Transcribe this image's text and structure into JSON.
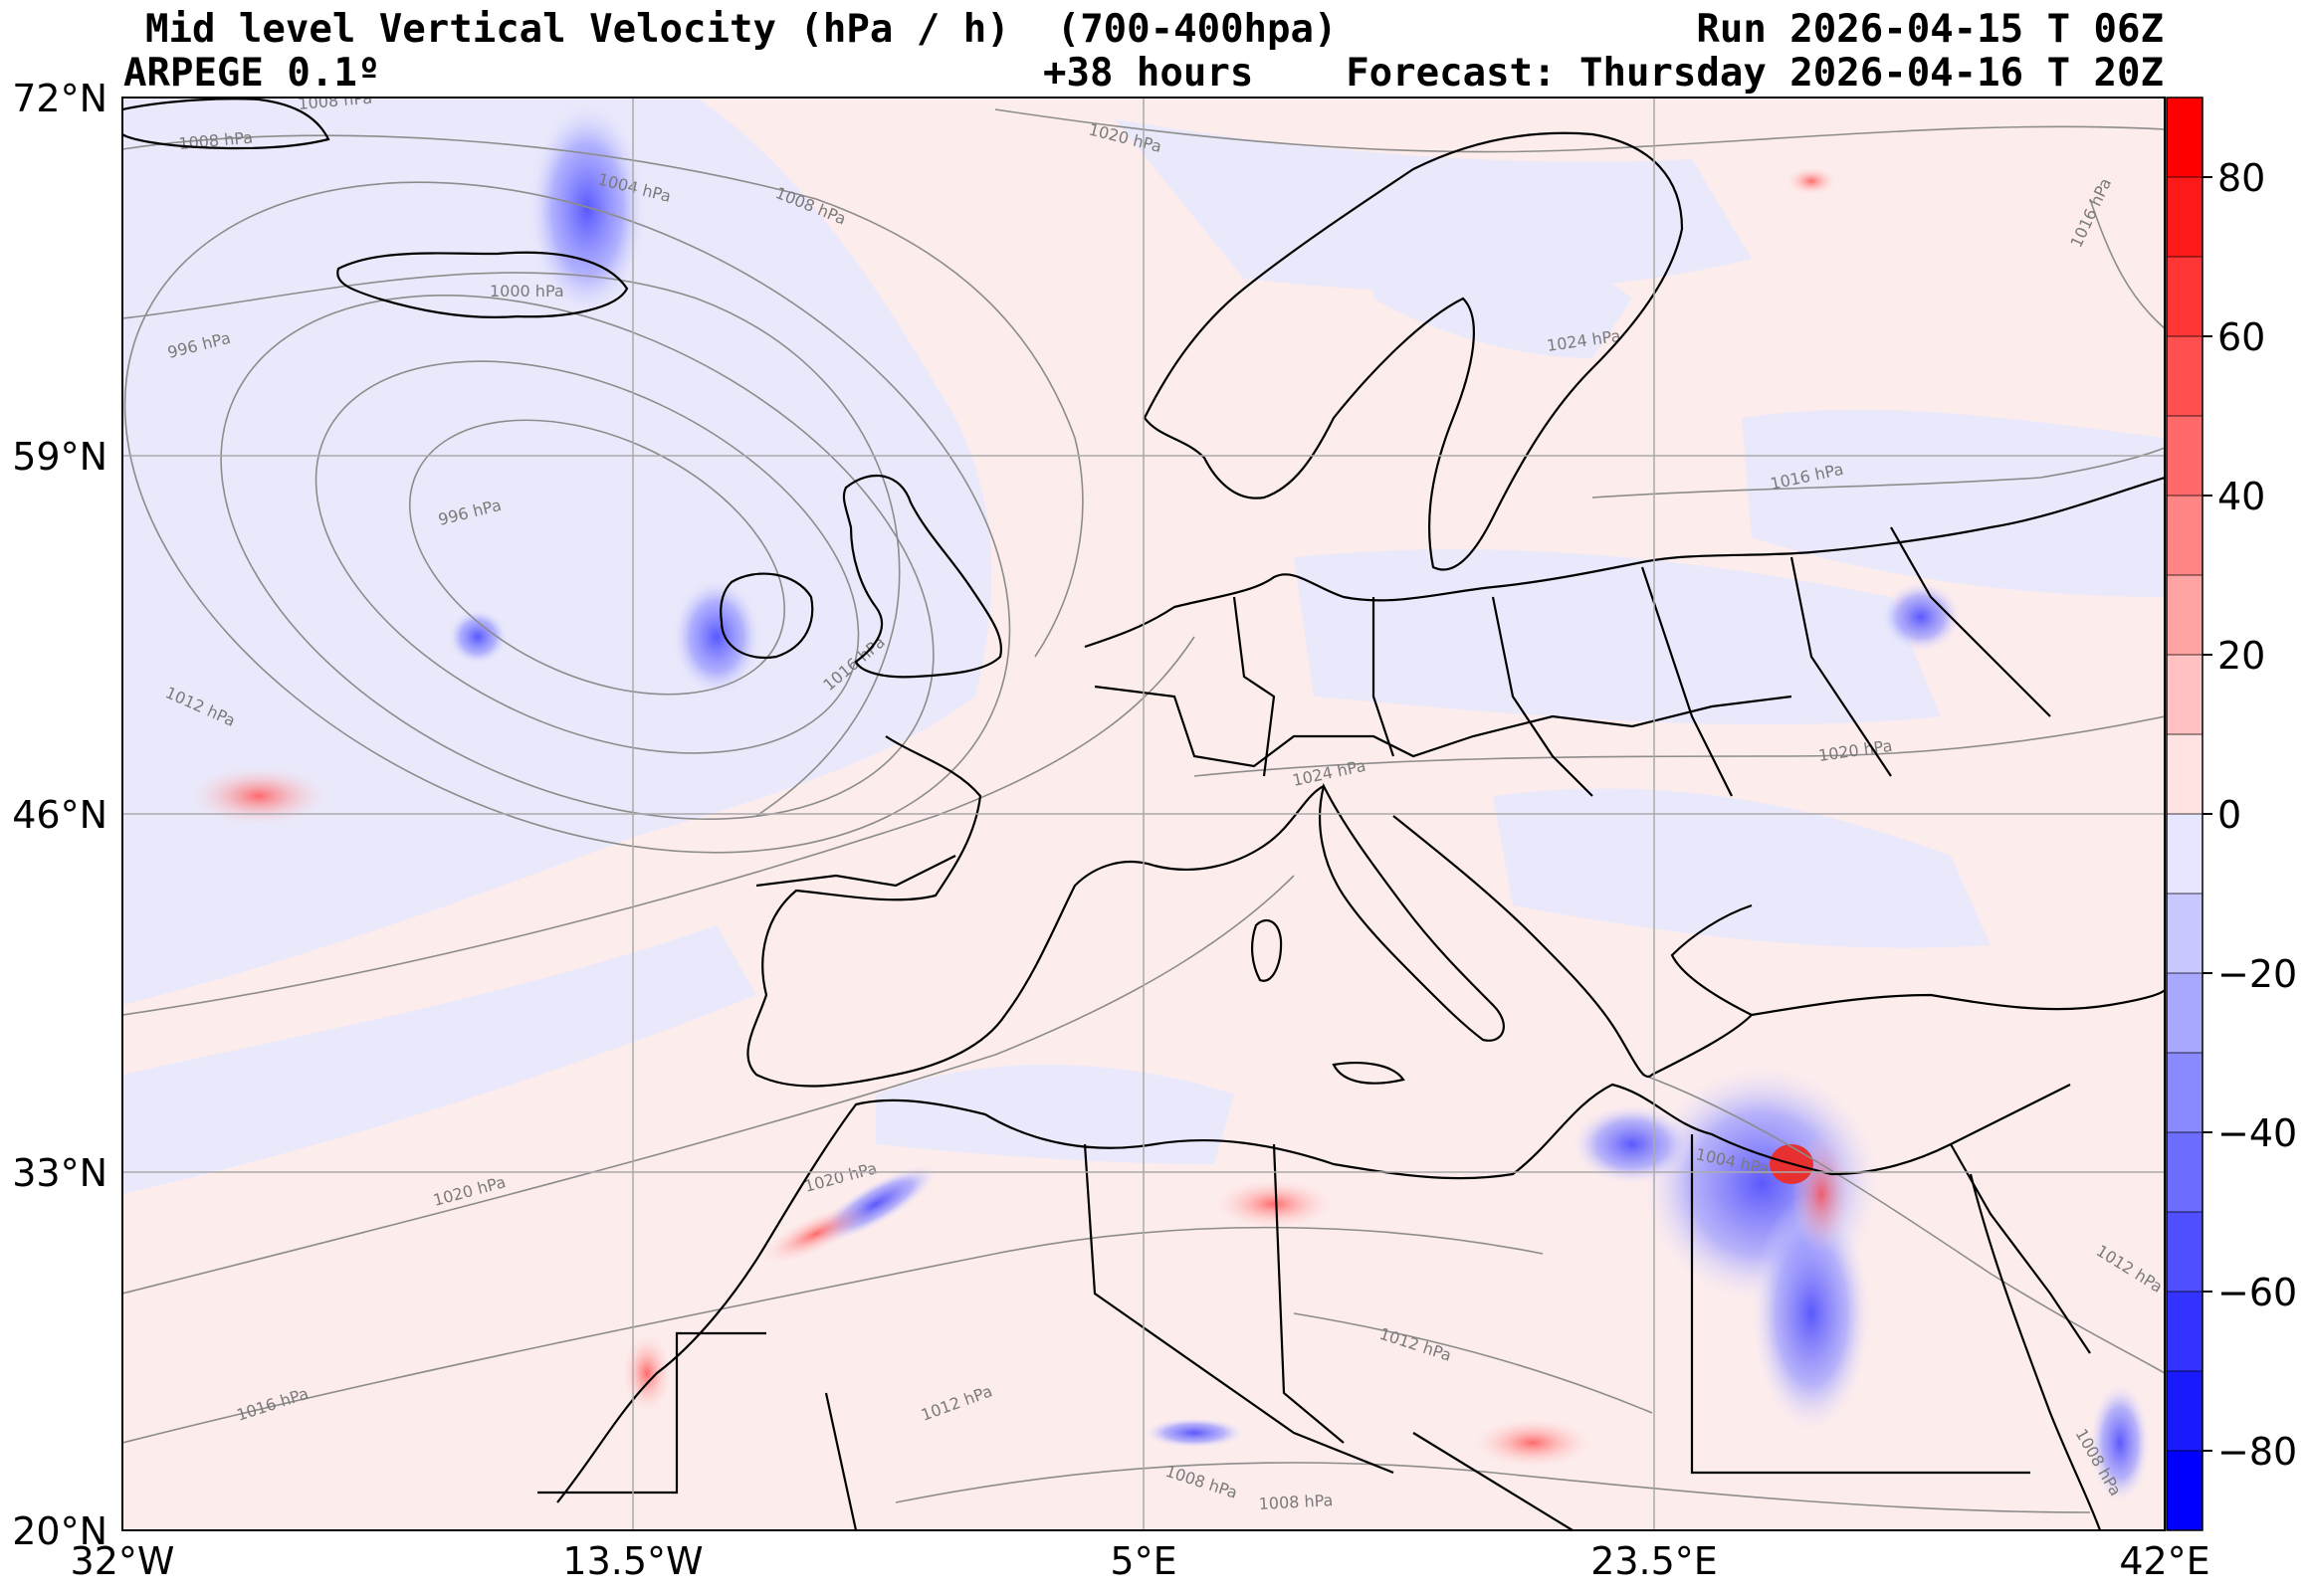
{
  "header": {
    "title": "Mid level Vertical Velocity (hPa / h)  (700-400hpa)",
    "model": "ARPEGE 0.1º",
    "run": "Run 2026-04-15 T 06Z",
    "lead": "+38 hours",
    "forecast": "Forecast: Thursday 2026-04-16 T 20Z"
  },
  "axes": {
    "lat_labels": [
      "72°N",
      "59°N",
      "46°N",
      "33°N",
      "20°N"
    ],
    "lon_labels": [
      "32°W",
      "13.5°W",
      "5°E",
      "23.5°E",
      "42°E"
    ]
  },
  "colorbar": {
    "labels": [
      "80",
      "60",
      "40",
      "20",
      "0",
      "−20",
      "−40",
      "−60",
      "−80"
    ],
    "range": [
      -90,
      90
    ],
    "positive_color": "#ff0000",
    "negative_color": "#0000ff"
  },
  "isobars": {
    "labels": [
      "1008 hPa",
      "1008 hPa",
      "1004 hPa",
      "1008 hPa",
      "1020 hPa",
      "1000 hPa",
      "996 hPa",
      "996 hPa",
      "1012 hPa",
      "1016 hPa",
      "1024 hPa",
      "1016 hPa",
      "1024 hPa",
      "1016 hPa",
      "1020 hPa",
      "1020 hPa",
      "1020 hPa",
      "1016 hPa",
      "1012 hPa",
      "1008 hPa",
      "1008 hPa",
      "1012 hPa",
      "1004 hPa",
      "1012 hPa",
      "1008 hPa"
    ]
  }
}
